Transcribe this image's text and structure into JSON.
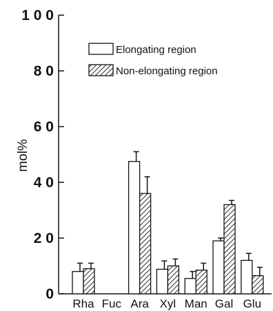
{
  "chart_data": {
    "type": "bar",
    "title": "",
    "xlabel": "",
    "ylabel": "mol%",
    "ylim": [
      0,
      100
    ],
    "yticks": [
      "0",
      "2 0",
      "4 0",
      "6 0",
      "8 0",
      "1 0 0"
    ],
    "ytick_values": [
      0,
      20,
      40,
      60,
      80,
      100
    ],
    "categories": [
      "Rha",
      "Fuc",
      "Ara",
      "Xyl",
      "Man",
      "Gal",
      "Glu"
    ],
    "series": [
      {
        "name": "Elongating region",
        "pattern": "open",
        "values": [
          8,
          0,
          47.5,
          8.8,
          5.5,
          19,
          12
        ],
        "errors": [
          3,
          0,
          3.5,
          3,
          2.5,
          1,
          2.5
        ]
      },
      {
        "name": "Non-elongating region",
        "pattern": "hatched",
        "values": [
          9,
          0,
          36,
          10,
          8.5,
          32,
          6.5
        ],
        "errors": [
          2,
          0,
          6,
          2.5,
          2.5,
          1.5,
          3
        ]
      }
    ],
    "legend_position": "top-right",
    "colors": {
      "stroke": "#111111",
      "fill": "#ffffff"
    }
  }
}
